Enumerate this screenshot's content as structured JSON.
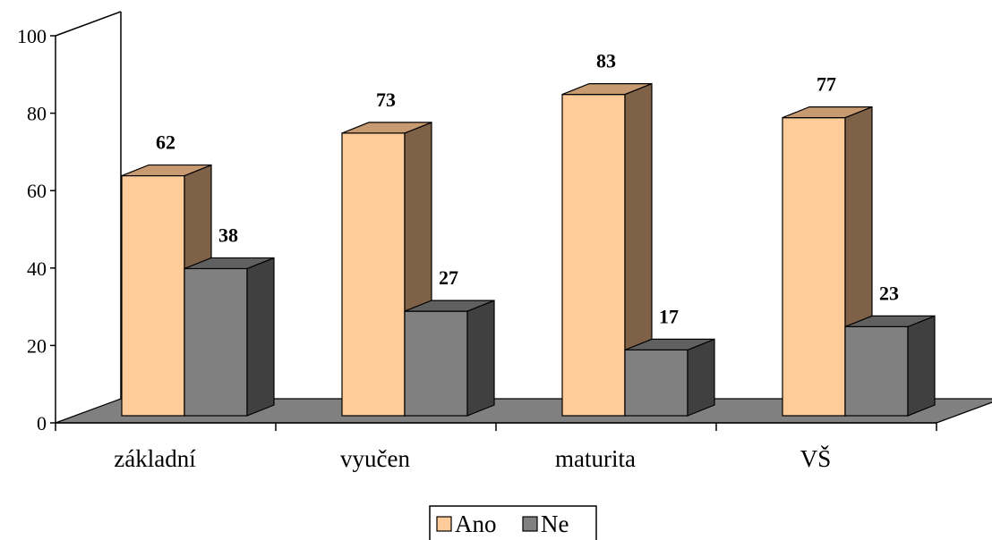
{
  "chart_data": {
    "type": "bar",
    "categories": [
      "základní",
      "vyučen",
      "maturita",
      "VŠ"
    ],
    "series": [
      {
        "name": "Ano",
        "values": [
          62,
          73,
          83,
          77
        ],
        "color": "#FFCC99",
        "side_color": "#7F6148",
        "top_color": "#C89A72"
      },
      {
        "name": "Ne",
        "values": [
          38,
          27,
          17,
          23
        ],
        "color": "#808080",
        "side_color": "#404040",
        "top_color": "#606060"
      }
    ],
    "y_ticks": [
      "0",
      "20",
      "40",
      "60",
      "80",
      "100"
    ],
    "ylim": [
      0,
      100
    ],
    "floor_color": "#808080",
    "legend_position": "bottom",
    "title": "",
    "xlabel": "",
    "ylabel": ""
  }
}
